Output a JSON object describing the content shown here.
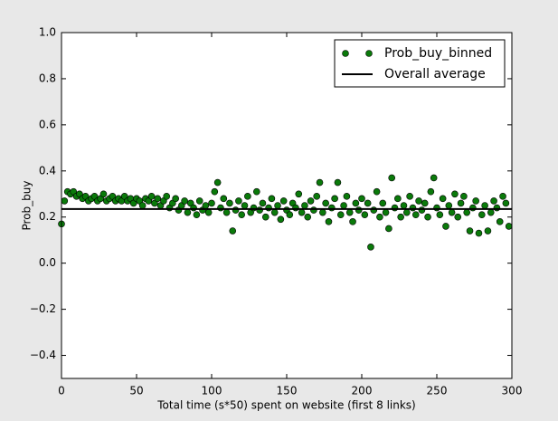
{
  "chart_data": {
    "type": "scatter",
    "xlabel": "Total time (s*50) spent on website (first 8 links)",
    "ylabel": "Prob_buy",
    "xlim": [
      0,
      300
    ],
    "ylim": [
      -0.5,
      1.0
    ],
    "xticks": [
      0,
      50,
      100,
      150,
      200,
      250,
      300
    ],
    "yticks": [
      {
        "value": -0.4,
        "label": "−0.4"
      },
      {
        "value": -0.2,
        "label": "−0.2"
      },
      {
        "value": 0.0,
        "label": "0.0"
      },
      {
        "value": 0.2,
        "label": "0.2"
      },
      {
        "value": 0.4,
        "label": "0.4"
      },
      {
        "value": 0.6,
        "label": "0.6"
      },
      {
        "value": 0.8,
        "label": "0.8"
      },
      {
        "value": 1.0,
        "label": "1.0"
      }
    ],
    "legend": "upper right",
    "series": [
      {
        "name": "Prob_buy_binned",
        "color": "#0a7a0a",
        "x": [
          0,
          2,
          4,
          6,
          8,
          10,
          12,
          14,
          16,
          18,
          20,
          22,
          24,
          26,
          28,
          30,
          32,
          34,
          36,
          38,
          40,
          42,
          44,
          46,
          48,
          50,
          52,
          54,
          56,
          58,
          60,
          62,
          64,
          66,
          68,
          70,
          72,
          74,
          76,
          78,
          80,
          82,
          84,
          86,
          88,
          90,
          92,
          94,
          96,
          98,
          100,
          102,
          104,
          106,
          108,
          110,
          112,
          114,
          116,
          118,
          120,
          122,
          124,
          126,
          128,
          130,
          132,
          134,
          136,
          138,
          140,
          142,
          144,
          146,
          148,
          150,
          152,
          154,
          156,
          158,
          160,
          162,
          164,
          166,
          168,
          170,
          172,
          174,
          176,
          178,
          180,
          182,
          184,
          186,
          188,
          190,
          192,
          194,
          196,
          198,
          200,
          202,
          204,
          206,
          208,
          210,
          212,
          214,
          216,
          218,
          220,
          222,
          224,
          226,
          228,
          230,
          232,
          234,
          236,
          238,
          240,
          242,
          244,
          246,
          248,
          250,
          252,
          254,
          256,
          258,
          260,
          262,
          264,
          266,
          268,
          270,
          272,
          274,
          276,
          278,
          280,
          282,
          284,
          286,
          288,
          290,
          292,
          294,
          296,
          298
        ],
        "values": [
          0.17,
          0.27,
          0.31,
          0.3,
          0.31,
          0.29,
          0.3,
          0.28,
          0.29,
          0.27,
          0.28,
          0.29,
          0.27,
          0.28,
          0.3,
          0.27,
          0.28,
          0.29,
          0.27,
          0.28,
          0.27,
          0.29,
          0.27,
          0.28,
          0.26,
          0.28,
          0.27,
          0.25,
          0.28,
          0.27,
          0.29,
          0.26,
          0.28,
          0.25,
          0.27,
          0.29,
          0.24,
          0.26,
          0.28,
          0.23,
          0.25,
          0.27,
          0.22,
          0.26,
          0.24,
          0.21,
          0.27,
          0.23,
          0.25,
          0.22,
          0.26,
          0.31,
          0.35,
          0.24,
          0.28,
          0.22,
          0.26,
          0.14,
          0.23,
          0.27,
          0.21,
          0.25,
          0.29,
          0.22,
          0.24,
          0.31,
          0.23,
          0.26,
          0.2,
          0.24,
          0.28,
          0.22,
          0.25,
          0.19,
          0.27,
          0.23,
          0.21,
          0.26,
          0.24,
          0.3,
          0.22,
          0.25,
          0.2,
          0.27,
          0.23,
          0.29,
          0.35,
          0.22,
          0.26,
          0.18,
          0.24,
          0.28,
          0.35,
          0.21,
          0.25,
          0.29,
          0.22,
          0.18,
          0.26,
          0.23,
          0.28,
          0.21,
          0.26,
          0.07,
          0.23,
          0.31,
          0.2,
          0.26,
          0.22,
          0.15,
          0.37,
          0.24,
          0.28,
          0.2,
          0.25,
          0.22,
          0.29,
          0.24,
          0.21,
          0.27,
          0.23,
          0.26,
          0.2,
          0.31,
          0.37,
          0.24,
          0.21,
          0.28,
          0.16,
          0.25,
          0.22,
          0.3,
          0.2,
          0.26,
          0.29,
          0.22,
          0.14,
          0.24,
          0.27,
          0.13,
          0.21,
          0.25,
          0.14,
          0.22,
          0.27,
          0.24,
          0.18,
          0.29,
          0.26,
          0.16
        ]
      },
      {
        "name": "Overall average",
        "color": "#000000",
        "value": 0.235
      }
    ]
  }
}
